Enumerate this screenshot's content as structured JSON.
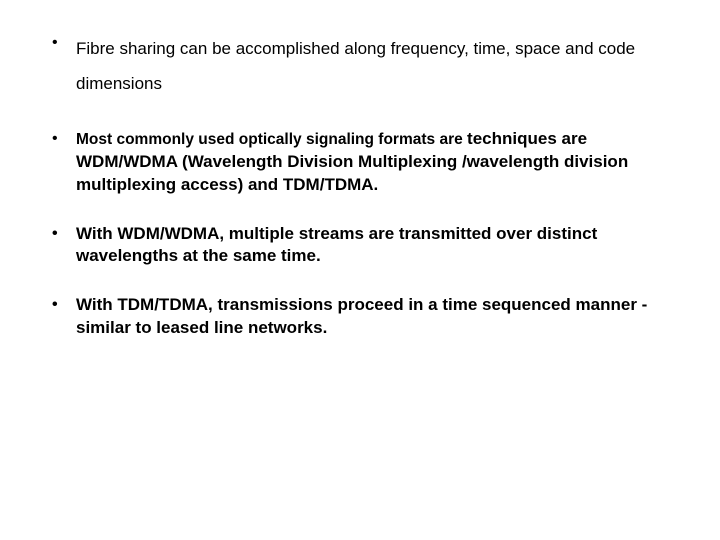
{
  "slide": {
    "background_color": "#ffffff",
    "text_color": "#000000",
    "font_family": "Arial",
    "bullets": [
      {
        "text": "Fibre sharing can be accomplished along frequency, time, space and code dimensions",
        "font_size": 17,
        "font_weight": 400,
        "line_height": 2.05
      },
      {
        "prefix": "Most commonly used optically signaling formats are ",
        "rest": "techniques are WDM/WDMA (Wavelength Division Multiplexing /wavelength division multiplexing access) and TDM/TDMA.",
        "prefix_font_size": 15.5,
        "rest_font_size": 17,
        "font_weight": 700,
        "line_height": 1.35
      },
      {
        "text": "With WDM/WDMA, multiple streams are transmitted over distinct wavelengths at the same time.",
        "font_size": 17,
        "font_weight": 700,
        "line_height": 1.35
      },
      {
        "text": "With TDM/TDMA, transmissions proceed in a time sequenced manner - similar to leased line networks.",
        "font_size": 17,
        "font_weight": 700,
        "line_height": 1.35
      }
    ]
  }
}
